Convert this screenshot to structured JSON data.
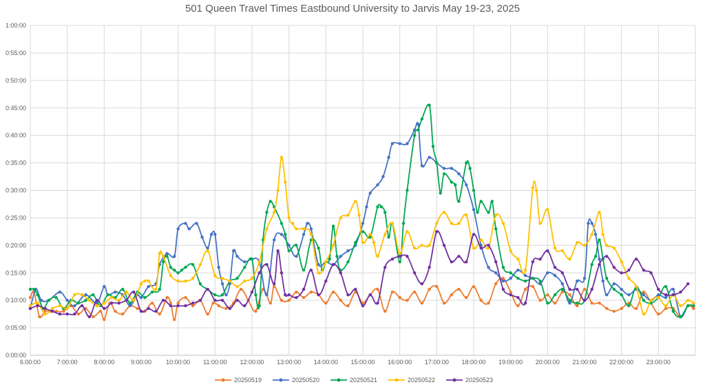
{
  "chart_data": {
    "type": "line",
    "title": "501 Queen Travel Times Eastbound University to Jarvis May 19-23, 2025",
    "xlabel": "",
    "ylabel": "",
    "x_unit": "hours",
    "y_unit": "minutes",
    "xlim": [
      6.0,
      24.0
    ],
    "ylim": [
      0,
      60
    ],
    "x_ticks": [
      "6:00:00",
      "7:00:00",
      "8:00:00",
      "9:00:00",
      "10:00:00",
      "11:00:00",
      "12:00:00",
      "13:00:00",
      "14:00:00",
      "15:00:00",
      "16:00:00",
      "17:00:00",
      "18:00:00",
      "19:00:00",
      "20:00:00",
      "21:00:00",
      "22:00:00",
      "23:00:00"
    ],
    "y_ticks": [
      "0:00:00",
      "0:05:00",
      "0:10:00",
      "0:15:00",
      "0:20:00",
      "0:25:00",
      "0:30:00",
      "0:35:00",
      "0:40:00",
      "0:45:00",
      "0:50:00",
      "0:55:00",
      "1:00:00"
    ],
    "grid": true,
    "legend_position": "bottom",
    "series": [
      {
        "name": "20250519",
        "color": "#ED7D31",
        "x": [
          6.0,
          6.1,
          6.25,
          6.4,
          6.55,
          6.7,
          6.9,
          7.1,
          7.3,
          7.5,
          7.7,
          7.9,
          8.0,
          8.15,
          8.3,
          8.5,
          8.7,
          8.9,
          9.1,
          9.3,
          9.5,
          9.7,
          9.8,
          9.9,
          10.0,
          10.2,
          10.4,
          10.6,
          10.8,
          10.95,
          11.1,
          11.3,
          11.5,
          11.7,
          11.9,
          12.1,
          12.3,
          12.5,
          12.6,
          12.8,
          13.0,
          13.2,
          13.4,
          13.6,
          13.8,
          14.0,
          14.2,
          14.4,
          14.6,
          14.8,
          15.0,
          15.2,
          15.4,
          15.6,
          15.8,
          16.0,
          16.2,
          16.4,
          16.6,
          16.8,
          17.0,
          17.2,
          17.4,
          17.6,
          17.8,
          18.0,
          18.2,
          18.4,
          18.6,
          18.8,
          19.0,
          19.2,
          19.4,
          19.6,
          19.8,
          20.0,
          20.2,
          20.4,
          20.6,
          20.8,
          21.0,
          21.2,
          21.4,
          21.6,
          21.8,
          22.0,
          22.2,
          22.4,
          22.6,
          22.8,
          23.0,
          23.2,
          23.4,
          23.6,
          23.8,
          23.95
        ],
        "y": [
          10.5,
          11.5,
          7.0,
          8.0,
          8.0,
          8.0,
          8.0,
          9.0,
          7.5,
          8.5,
          7.0,
          8.0,
          6.5,
          9.5,
          8.0,
          7.5,
          9.0,
          8.5,
          8.0,
          9.5,
          7.5,
          10.5,
          9.5,
          6.5,
          9.5,
          10.5,
          9.0,
          10.0,
          7.5,
          9.5,
          9.0,
          8.5,
          9.5,
          12.0,
          10.0,
          8.0,
          12.0,
          9.5,
          12.5,
          10.0,
          10.0,
          11.5,
          10.5,
          11.5,
          11.0,
          9.5,
          11.5,
          10.0,
          9.0,
          11.5,
          9.5,
          11.0,
          12.0,
          8.0,
          11.5,
          10.5,
          10.0,
          11.5,
          9.5,
          12.0,
          12.5,
          9.5,
          11.0,
          12.0,
          10.5,
          12.5,
          10.0,
          9.5,
          13.0,
          14.0,
          11.5,
          9.0,
          12.0,
          12.5,
          10.0,
          11.0,
          9.5,
          11.5,
          11.0,
          9.0,
          12.0,
          9.5,
          9.5,
          8.5,
          8.0,
          8.5,
          9.5,
          8.5,
          11.5,
          9.5,
          7.5,
          8.5,
          8.5,
          7.0,
          9.0,
          8.5
        ]
      },
      {
        "name": "20250520",
        "color": "#4472C4",
        "x": [
          6.0,
          6.15,
          6.3,
          6.5,
          6.8,
          7.0,
          7.2,
          7.5,
          7.8,
          8.0,
          8.1,
          8.3,
          8.5,
          8.7,
          8.9,
          9.0,
          9.2,
          9.4,
          9.5,
          9.7,
          9.9,
          10.0,
          10.2,
          10.3,
          10.5,
          10.65,
          10.8,
          10.9,
          11.0,
          11.1,
          11.2,
          11.3,
          11.4,
          11.5,
          11.6,
          11.8,
          12.0,
          12.2,
          12.4,
          12.6,
          12.8,
          13.0,
          13.2,
          13.4,
          13.5,
          13.6,
          13.8,
          14.0,
          14.2,
          14.4,
          14.6,
          14.8,
          15.0,
          15.1,
          15.2,
          15.4,
          15.55,
          15.7,
          15.8,
          16.0,
          16.2,
          16.4,
          16.5,
          16.6,
          16.8,
          17.0,
          17.2,
          17.4,
          17.6,
          17.8,
          18.0,
          18.2,
          18.4,
          18.6,
          18.8,
          19.0,
          19.2,
          19.4,
          19.6,
          19.8,
          20.0,
          20.2,
          20.4,
          20.6,
          20.8,
          21.0,
          21.1,
          21.2,
          21.3,
          21.4,
          21.5,
          21.6,
          21.8,
          22.0,
          22.2,
          22.4,
          22.6,
          22.8,
          23.0,
          23.2,
          23.4,
          23.6,
          23.8,
          23.95
        ],
        "y": [
          8.5,
          12.0,
          10.0,
          10.0,
          11.5,
          10.0,
          9.0,
          11.0,
          9.5,
          12.5,
          11.0,
          11.5,
          11.0,
          9.0,
          11.0,
          10.5,
          12.5,
          13.0,
          16.5,
          18.5,
          18.0,
          23.0,
          24.0,
          23.0,
          24.0,
          21.5,
          19.5,
          22.0,
          22.0,
          16.0,
          13.0,
          11.0,
          13.0,
          19.0,
          18.0,
          17.0,
          17.5,
          17.0,
          11.0,
          21.0,
          22.0,
          20.0,
          18.0,
          22.0,
          24.0,
          23.0,
          16.5,
          17.0,
          16.5,
          18.0,
          19.0,
          20.0,
          24.0,
          27.0,
          29.5,
          31.0,
          32.5,
          36.0,
          38.5,
          38.5,
          38.5,
          41.0,
          42.0,
          34.5,
          36.0,
          35.0,
          34.0,
          34.0,
          33.0,
          31.0,
          26.5,
          20.0,
          16.0,
          15.0,
          13.5,
          14.0,
          15.5,
          14.5,
          14.0,
          13.0,
          15.0,
          14.5,
          13.0,
          9.5,
          13.5,
          14.0,
          24.0,
          24.0,
          22.0,
          17.5,
          13.5,
          11.0,
          13.0,
          12.0,
          11.0,
          12.0,
          11.0,
          10.0,
          11.0,
          10.5,
          12.0,
          7.0,
          9.0,
          9.0
        ]
      },
      {
        "name": "20250521",
        "color": "#00A651",
        "x": [
          6.0,
          6.1,
          6.2,
          6.35,
          6.5,
          6.7,
          6.9,
          7.1,
          7.3,
          7.5,
          7.7,
          7.9,
          8.1,
          8.3,
          8.5,
          8.7,
          8.9,
          9.1,
          9.3,
          9.5,
          9.6,
          9.7,
          9.8,
          9.9,
          10.0,
          10.1,
          10.2,
          10.4,
          10.6,
          10.8,
          11.0,
          11.2,
          11.4,
          11.6,
          11.8,
          12.0,
          12.1,
          12.2,
          12.3,
          12.4,
          12.5,
          12.6,
          12.8,
          12.9,
          13.0,
          13.2,
          13.4,
          13.6,
          13.8,
          13.9,
          14.0,
          14.1,
          14.2,
          14.3,
          14.4,
          14.6,
          14.8,
          15.0,
          15.2,
          15.4,
          15.5,
          15.6,
          15.7,
          15.8,
          16.0,
          16.1,
          16.2,
          16.4,
          16.5,
          16.6,
          16.8,
          16.9,
          17.0,
          17.1,
          17.2,
          17.4,
          17.5,
          17.6,
          17.8,
          17.9,
          18.0,
          18.1,
          18.2,
          18.4,
          18.5,
          18.6,
          18.8,
          19.0,
          19.2,
          19.4,
          19.6,
          19.8,
          20.0,
          20.2,
          20.4,
          20.6,
          20.8,
          21.0,
          21.2,
          21.3,
          21.4,
          21.5,
          21.6,
          21.8,
          22.0,
          22.2,
          22.4,
          22.6,
          22.8,
          23.0,
          23.2,
          23.4,
          23.6,
          23.8,
          23.95
        ],
        "y": [
          12.0,
          12.0,
          11.0,
          8.5,
          10.0,
          10.5,
          8.5,
          10.0,
          9.5,
          10.0,
          11.0,
          9.0,
          11.0,
          10.5,
          12.0,
          9.5,
          11.5,
          10.5,
          11.5,
          12.0,
          17.0,
          18.0,
          16.0,
          15.5,
          15.0,
          15.5,
          16.0,
          16.5,
          13.0,
          12.0,
          11.0,
          11.0,
          13.5,
          14.0,
          16.0,
          17.5,
          11.0,
          9.0,
          21.0,
          26.0,
          28.0,
          27.0,
          24.0,
          22.0,
          19.0,
          20.0,
          15.5,
          21.0,
          19.5,
          15.5,
          17.0,
          17.5,
          23.5,
          18.0,
          15.5,
          17.0,
          20.5,
          22.5,
          21.5,
          27.0,
          27.0,
          26.0,
          21.5,
          24.0,
          17.0,
          24.0,
          30.0,
          40.0,
          41.0,
          43.0,
          45.5,
          38.0,
          35.0,
          29.5,
          33.0,
          31.5,
          31.0,
          28.0,
          35.0,
          34.0,
          30.0,
          26.0,
          28.0,
          26.0,
          28.0,
          23.0,
          16.0,
          15.0,
          14.0,
          13.5,
          14.0,
          13.5,
          9.5,
          11.0,
          12.0,
          10.0,
          9.5,
          10.0,
          16.5,
          18.0,
          21.0,
          17.5,
          14.0,
          12.0,
          11.0,
          9.0,
          12.5,
          10.0,
          9.5,
          10.5,
          12.5,
          8.0,
          7.0,
          9.0,
          9.0
        ]
      },
      {
        "name": "20250522",
        "color": "#FFC000",
        "x": [
          6.0,
          6.2,
          6.4,
          6.6,
          6.8,
          7.0,
          7.2,
          7.4,
          7.6,
          7.8,
          8.0,
          8.2,
          8.4,
          8.6,
          8.8,
          9.0,
          9.1,
          9.2,
          9.4,
          9.5,
          9.6,
          9.8,
          10.0,
          10.2,
          10.4,
          10.6,
          10.8,
          11.0,
          11.2,
          11.4,
          11.6,
          11.8,
          12.0,
          12.2,
          12.4,
          12.6,
          12.7,
          12.8,
          12.9,
          13.0,
          13.1,
          13.2,
          13.4,
          13.6,
          13.8,
          14.0,
          14.2,
          14.4,
          14.6,
          14.8,
          14.9,
          15.0,
          15.2,
          15.3,
          15.4,
          15.6,
          15.8,
          16.0,
          16.2,
          16.4,
          16.6,
          16.8,
          17.0,
          17.2,
          17.4,
          17.6,
          17.8,
          18.0,
          18.2,
          18.4,
          18.6,
          18.8,
          19.0,
          19.2,
          19.4,
          19.6,
          19.7,
          19.8,
          20.0,
          20.2,
          20.4,
          20.6,
          20.8,
          21.0,
          21.2,
          21.4,
          21.5,
          21.6,
          21.8,
          22.0,
          22.2,
          22.4,
          22.6,
          22.8,
          23.0,
          23.2,
          23.4,
          23.6,
          23.8,
          23.95
        ],
        "y": [
          9.0,
          9.5,
          7.5,
          8.5,
          9.0,
          8.5,
          11.0,
          11.0,
          10.0,
          9.0,
          9.5,
          10.5,
          10.0,
          11.5,
          10.0,
          13.0,
          13.5,
          13.5,
          12.0,
          18.5,
          18.0,
          14.5,
          13.5,
          13.5,
          14.0,
          16.5,
          19.0,
          14.5,
          14.0,
          13.5,
          12.5,
          13.5,
          14.0,
          17.0,
          23.0,
          26.0,
          30.0,
          36.0,
          31.5,
          25.0,
          24.0,
          23.0,
          23.0,
          22.0,
          15.0,
          17.0,
          20.0,
          25.0,
          25.5,
          28.0,
          25.5,
          20.5,
          22.0,
          20.5,
          18.0,
          22.0,
          24.0,
          18.5,
          22.5,
          19.5,
          20.0,
          20.0,
          24.0,
          26.0,
          24.0,
          24.0,
          25.5,
          19.5,
          21.0,
          19.5,
          25.5,
          24.0,
          19.0,
          17.5,
          15.5,
          30.5,
          30.0,
          24.0,
          26.5,
          19.5,
          19.0,
          17.5,
          20.5,
          20.0,
          22.0,
          26.0,
          22.0,
          20.0,
          19.5,
          17.0,
          14.0,
          12.5,
          7.5,
          10.0,
          10.5,
          9.0,
          11.0,
          9.0,
          10.0,
          9.5
        ]
      },
      {
        "name": "20250523",
        "color": "#7030A0",
        "x": [
          6.0,
          6.2,
          6.4,
          6.6,
          6.8,
          7.0,
          7.2,
          7.4,
          7.6,
          7.8,
          8.0,
          8.2,
          8.4,
          8.6,
          8.8,
          9.0,
          9.2,
          9.4,
          9.6,
          9.8,
          10.0,
          10.2,
          10.4,
          10.6,
          10.8,
          11.0,
          11.2,
          11.4,
          11.6,
          11.8,
          12.0,
          12.2,
          12.4,
          12.6,
          12.7,
          12.8,
          12.9,
          13.0,
          13.2,
          13.4,
          13.6,
          13.8,
          14.0,
          14.2,
          14.4,
          14.6,
          14.8,
          15.0,
          15.2,
          15.4,
          15.6,
          15.8,
          16.0,
          16.2,
          16.4,
          16.6,
          16.8,
          17.0,
          17.2,
          17.4,
          17.6,
          17.8,
          18.0,
          18.2,
          18.4,
          18.6,
          18.8,
          19.0,
          19.2,
          19.4,
          19.6,
          19.8,
          20.0,
          20.2,
          20.4,
          20.6,
          20.8,
          21.0,
          21.2,
          21.4,
          21.6,
          21.8,
          22.0,
          22.2,
          22.4,
          22.6,
          22.8,
          23.0,
          23.2,
          23.4,
          23.6,
          23.8
        ],
        "y": [
          8.5,
          9.0,
          8.5,
          8.0,
          7.5,
          7.5,
          7.5,
          9.0,
          7.0,
          10.0,
          8.5,
          9.5,
          9.5,
          10.0,
          11.5,
          8.0,
          8.5,
          8.0,
          10.0,
          9.0,
          9.0,
          9.0,
          9.5,
          10.0,
          12.0,
          10.0,
          10.0,
          8.5,
          10.0,
          9.0,
          11.5,
          15.0,
          16.5,
          13.0,
          19.0,
          15.0,
          11.0,
          11.0,
          10.5,
          12.0,
          15.5,
          11.0,
          13.5,
          16.5,
          15.0,
          11.0,
          12.0,
          9.0,
          11.0,
          9.5,
          16.0,
          17.5,
          18.0,
          18.0,
          15.0,
          13.0,
          16.0,
          22.5,
          20.0,
          17.0,
          18.0,
          17.0,
          22.0,
          19.5,
          20.0,
          17.0,
          12.0,
          11.0,
          10.5,
          9.5,
          17.0,
          17.5,
          19.0,
          16.0,
          15.0,
          12.0,
          12.0,
          10.0,
          12.0,
          16.5,
          18.0,
          16.0,
          15.0,
          15.5,
          17.5,
          15.5,
          15.0,
          12.0,
          11.0,
          11.0,
          11.5,
          13.0
        ]
      }
    ]
  }
}
